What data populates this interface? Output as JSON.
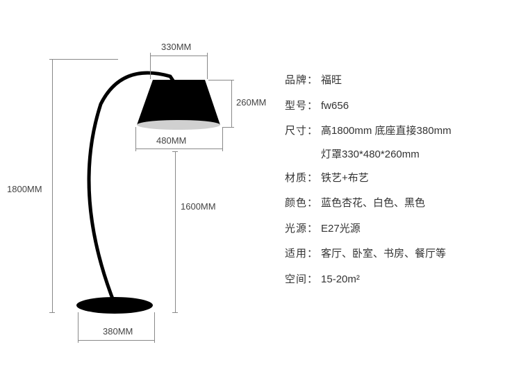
{
  "diagram": {
    "dimensions": {
      "top_width": "330MM",
      "shade_height": "260MM",
      "shade_bottom_width": "480MM",
      "total_height": "1800MM",
      "arc_height": "1600MM",
      "base_width": "380MM"
    },
    "colors": {
      "lamp_fill": "#000000",
      "lamp_shade_inner": "#cccccc",
      "dim_line": "#888888",
      "dim_text": "#444444",
      "spec_text": "#333333",
      "background": "#ffffff"
    },
    "label_fontsize": 13,
    "spec_fontsize": 15
  },
  "specs": [
    {
      "label": "品牌：",
      "value": "福旺"
    },
    {
      "label": "型号：",
      "value": "fw656"
    },
    {
      "label": "尺寸：",
      "value": "高1800mm 底座直接380mm",
      "line2": "灯罩330*480*260mm"
    },
    {
      "label": "材质：",
      "value": "铁艺+布艺"
    },
    {
      "label": "颜色：",
      "value": "蓝色杏花、白色、黑色"
    },
    {
      "label": "光源：",
      "value": "E27光源"
    },
    {
      "label": "适用：",
      "value": "客厅、卧室、书房、餐厅等"
    },
    {
      "label": "空间：",
      "value": "15-20m²"
    }
  ]
}
